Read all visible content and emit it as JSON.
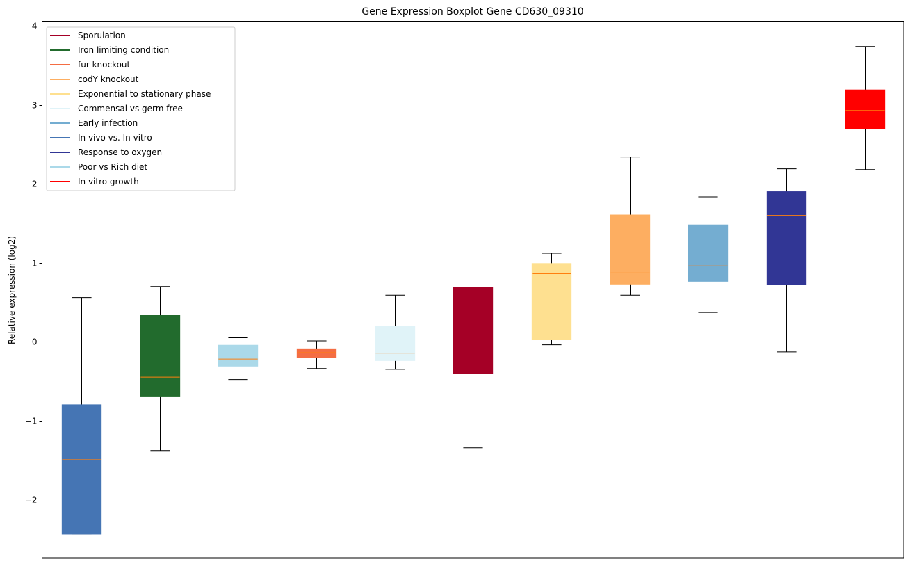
{
  "chart_data": {
    "type": "boxplot",
    "title": "Gene Expression Boxplot Gene CD630_09310",
    "xlabel": "",
    "ylabel": "Relative expression (log2)",
    "ylim": [
      -2.74,
      4.06
    ],
    "yticks": [
      -2,
      -1,
      0,
      1,
      2,
      3,
      4
    ],
    "ytick_labels": [
      "−2",
      "−1",
      "0",
      "1",
      "2",
      "3",
      "4"
    ],
    "grid": false,
    "legend_position": "top-left",
    "legend": [
      {
        "label": "Sporulation",
        "color": "#a50026"
      },
      {
        "label": "Iron limiting condition",
        "color": "#226b2d"
      },
      {
        "label": "fur knockout",
        "color": "#f46d43"
      },
      {
        "label": "codY knockout",
        "color": "#fdae61"
      },
      {
        "label": "Exponential to stationary phase",
        "color": "#fee090"
      },
      {
        "label": "Commensal vs germ free",
        "color": "#e0f3f8"
      },
      {
        "label": "Early infection",
        "color": "#74add1"
      },
      {
        "label": "In vivo vs. In vitro",
        "color": "#4575b4"
      },
      {
        "label": "Response to oxygen",
        "color": "#313695"
      },
      {
        "label": "Poor vs Rich diet",
        "color": "#abd9e9"
      },
      {
        "label": "In vitro growth",
        "color": "#ff0000"
      }
    ],
    "median_color": "#ff7f0e",
    "boxes": [
      {
        "name": "In vivo vs. In vitro",
        "color": "#4575b4",
        "whisker_low": -2.44,
        "q1": -2.44,
        "median": -1.49,
        "q3": -0.8,
        "whisker_high": 0.56
      },
      {
        "name": "Iron limiting condition",
        "color": "#226b2d",
        "whisker_low": -1.38,
        "q1": -0.69,
        "median": -0.45,
        "q3": 0.335,
        "whisker_high": 0.7
      },
      {
        "name": "Poor vs Rich diet",
        "color": "#abd9e9",
        "whisker_low": -0.48,
        "q1": -0.31,
        "median": -0.22,
        "q3": -0.045,
        "whisker_high": 0.05
      },
      {
        "name": "fur knockout",
        "color": "#f46d43",
        "whisker_low": -0.34,
        "q1": -0.2,
        "median": -0.14,
        "q3": -0.09,
        "whisker_high": 0.01
      },
      {
        "name": "Commensal vs germ free",
        "color": "#e0f3f8",
        "whisker_low": -0.35,
        "q1": -0.24,
        "median": -0.145,
        "q3": 0.195,
        "whisker_high": 0.59
      },
      {
        "name": "Sporulation",
        "color": "#a50026",
        "whisker_low": -1.345,
        "q1": -0.4,
        "median": -0.03,
        "q3": 0.685,
        "whisker_high": 0.685
      },
      {
        "name": "Exponential to stationary phase",
        "color": "#fee090",
        "whisker_low": -0.04,
        "q1": 0.03,
        "median": 0.86,
        "q3": 0.99,
        "whisker_high": 1.12
      },
      {
        "name": "codY knockout",
        "color": "#fdae61",
        "whisker_low": 0.59,
        "q1": 0.73,
        "median": 0.87,
        "q3": 1.605,
        "whisker_high": 2.34
      },
      {
        "name": "Early infection",
        "color": "#74add1",
        "whisker_low": 0.37,
        "q1": 0.765,
        "median": 0.96,
        "q3": 1.48,
        "whisker_high": 1.835
      },
      {
        "name": "Response to oxygen",
        "color": "#313695",
        "whisker_low": -0.13,
        "q1": 0.725,
        "median": 1.6,
        "q3": 1.9,
        "whisker_high": 2.19
      },
      {
        "name": "In vitro growth",
        "color": "#ff0000",
        "whisker_low": 2.18,
        "q1": 2.695,
        "median": 2.93,
        "q3": 3.19,
        "whisker_high": 3.74
      }
    ]
  }
}
